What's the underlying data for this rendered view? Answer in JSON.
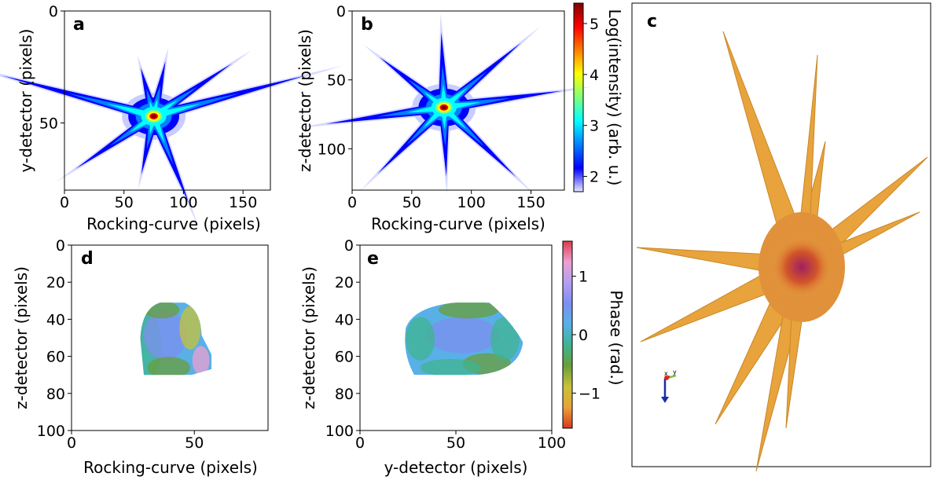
{
  "colors": {
    "jet": [
      "#00007f",
      "#0000ff",
      "#007fff",
      "#00ffff",
      "#7fff7f",
      "#ffff00",
      "#ff7f00",
      "#ff0000",
      "#7f0000"
    ],
    "phase_map": [
      "#d9381e",
      "#e8a33a",
      "#c7c23a",
      "#6a9e3a",
      "#3fb48f",
      "#58b0e6",
      "#7d8ff0",
      "#b49ff0",
      "#ee9fd0",
      "#dc3c4c"
    ],
    "surface": "#e8a33c"
  },
  "chart_data": [
    {
      "panel": "a",
      "type": "heatmap",
      "xlabel": "Rocking-curve (pixels)",
      "ylabel": "y-detector (pixels)",
      "xlim": [
        0,
        173
      ],
      "ylim": [
        80,
        0
      ],
      "xticks": [
        "0",
        "50",
        "100",
        "150"
      ],
      "yticks": [
        "0",
        "50"
      ],
      "peak": {
        "x": 75,
        "y": 47
      },
      "streak_angles_deg": [
        15,
        34,
        78,
        105,
        165,
        214,
        258,
        292
      ]
    },
    {
      "panel": "b",
      "type": "heatmap",
      "xlabel": "Rocking-curve (pixels)",
      "ylabel": "z-detector (pixels)",
      "xlim": [
        0,
        178
      ],
      "ylim": [
        130,
        0
      ],
      "xticks": [
        "0",
        "50",
        "100",
        "150"
      ],
      "yticks": [
        "0",
        "50",
        "100"
      ],
      "peak": {
        "x": 77,
        "y": 70
      },
      "streak_angles_deg": [
        8,
        40,
        92,
        142,
        188,
        225,
        272,
        316
      ]
    },
    {
      "panel": "colorbar-intensity",
      "type": "colorbar",
      "label": "Log(intensity) (arb. u.)",
      "range": [
        1.7,
        5.4
      ],
      "ticks": [
        "2",
        "3",
        "4",
        "5"
      ],
      "colormap": "jet"
    },
    {
      "panel": "c",
      "type": "3d-isosurface",
      "description": "isosurface of eight-armed diffraction pattern",
      "axes_labels": [
        "x",
        "y"
      ]
    },
    {
      "panel": "d",
      "type": "heatmap",
      "xlabel": "Rocking-curve (pixels)",
      "ylabel": "z-detector (pixels)",
      "xlim": [
        0,
        80
      ],
      "ylim": [
        100,
        0
      ],
      "xticks": [
        "0",
        "50"
      ],
      "yticks": [
        "0",
        "20",
        "40",
        "60",
        "80",
        "100"
      ],
      "support": {
        "x_range": [
          28,
          57
        ],
        "y_range": [
          31,
          70
        ]
      }
    },
    {
      "panel": "e",
      "type": "heatmap",
      "xlabel": "y-detector (pixels)",
      "ylabel": "z-detector (pixels)",
      "xlim": [
        0,
        100
      ],
      "ylim": [
        100,
        0
      ],
      "xticks": [
        "0",
        "50",
        "100"
      ],
      "yticks": [
        "0",
        "20",
        "40",
        "60",
        "80",
        "100"
      ],
      "support": {
        "x_range": [
          22,
          85
        ],
        "y_range": [
          31,
          70
        ]
      }
    },
    {
      "panel": "colorbar-phase",
      "type": "colorbar",
      "label": "Phase (rad.)",
      "range": [
        -1.6,
        1.6
      ],
      "ticks": [
        "−1",
        "0",
        "1"
      ],
      "colormap": "phase_map"
    }
  ],
  "panel_labels": {
    "a": "a",
    "b": "b",
    "c": "c",
    "d": "d",
    "e": "e"
  },
  "axes3d": {
    "x": "x",
    "y": "y"
  }
}
